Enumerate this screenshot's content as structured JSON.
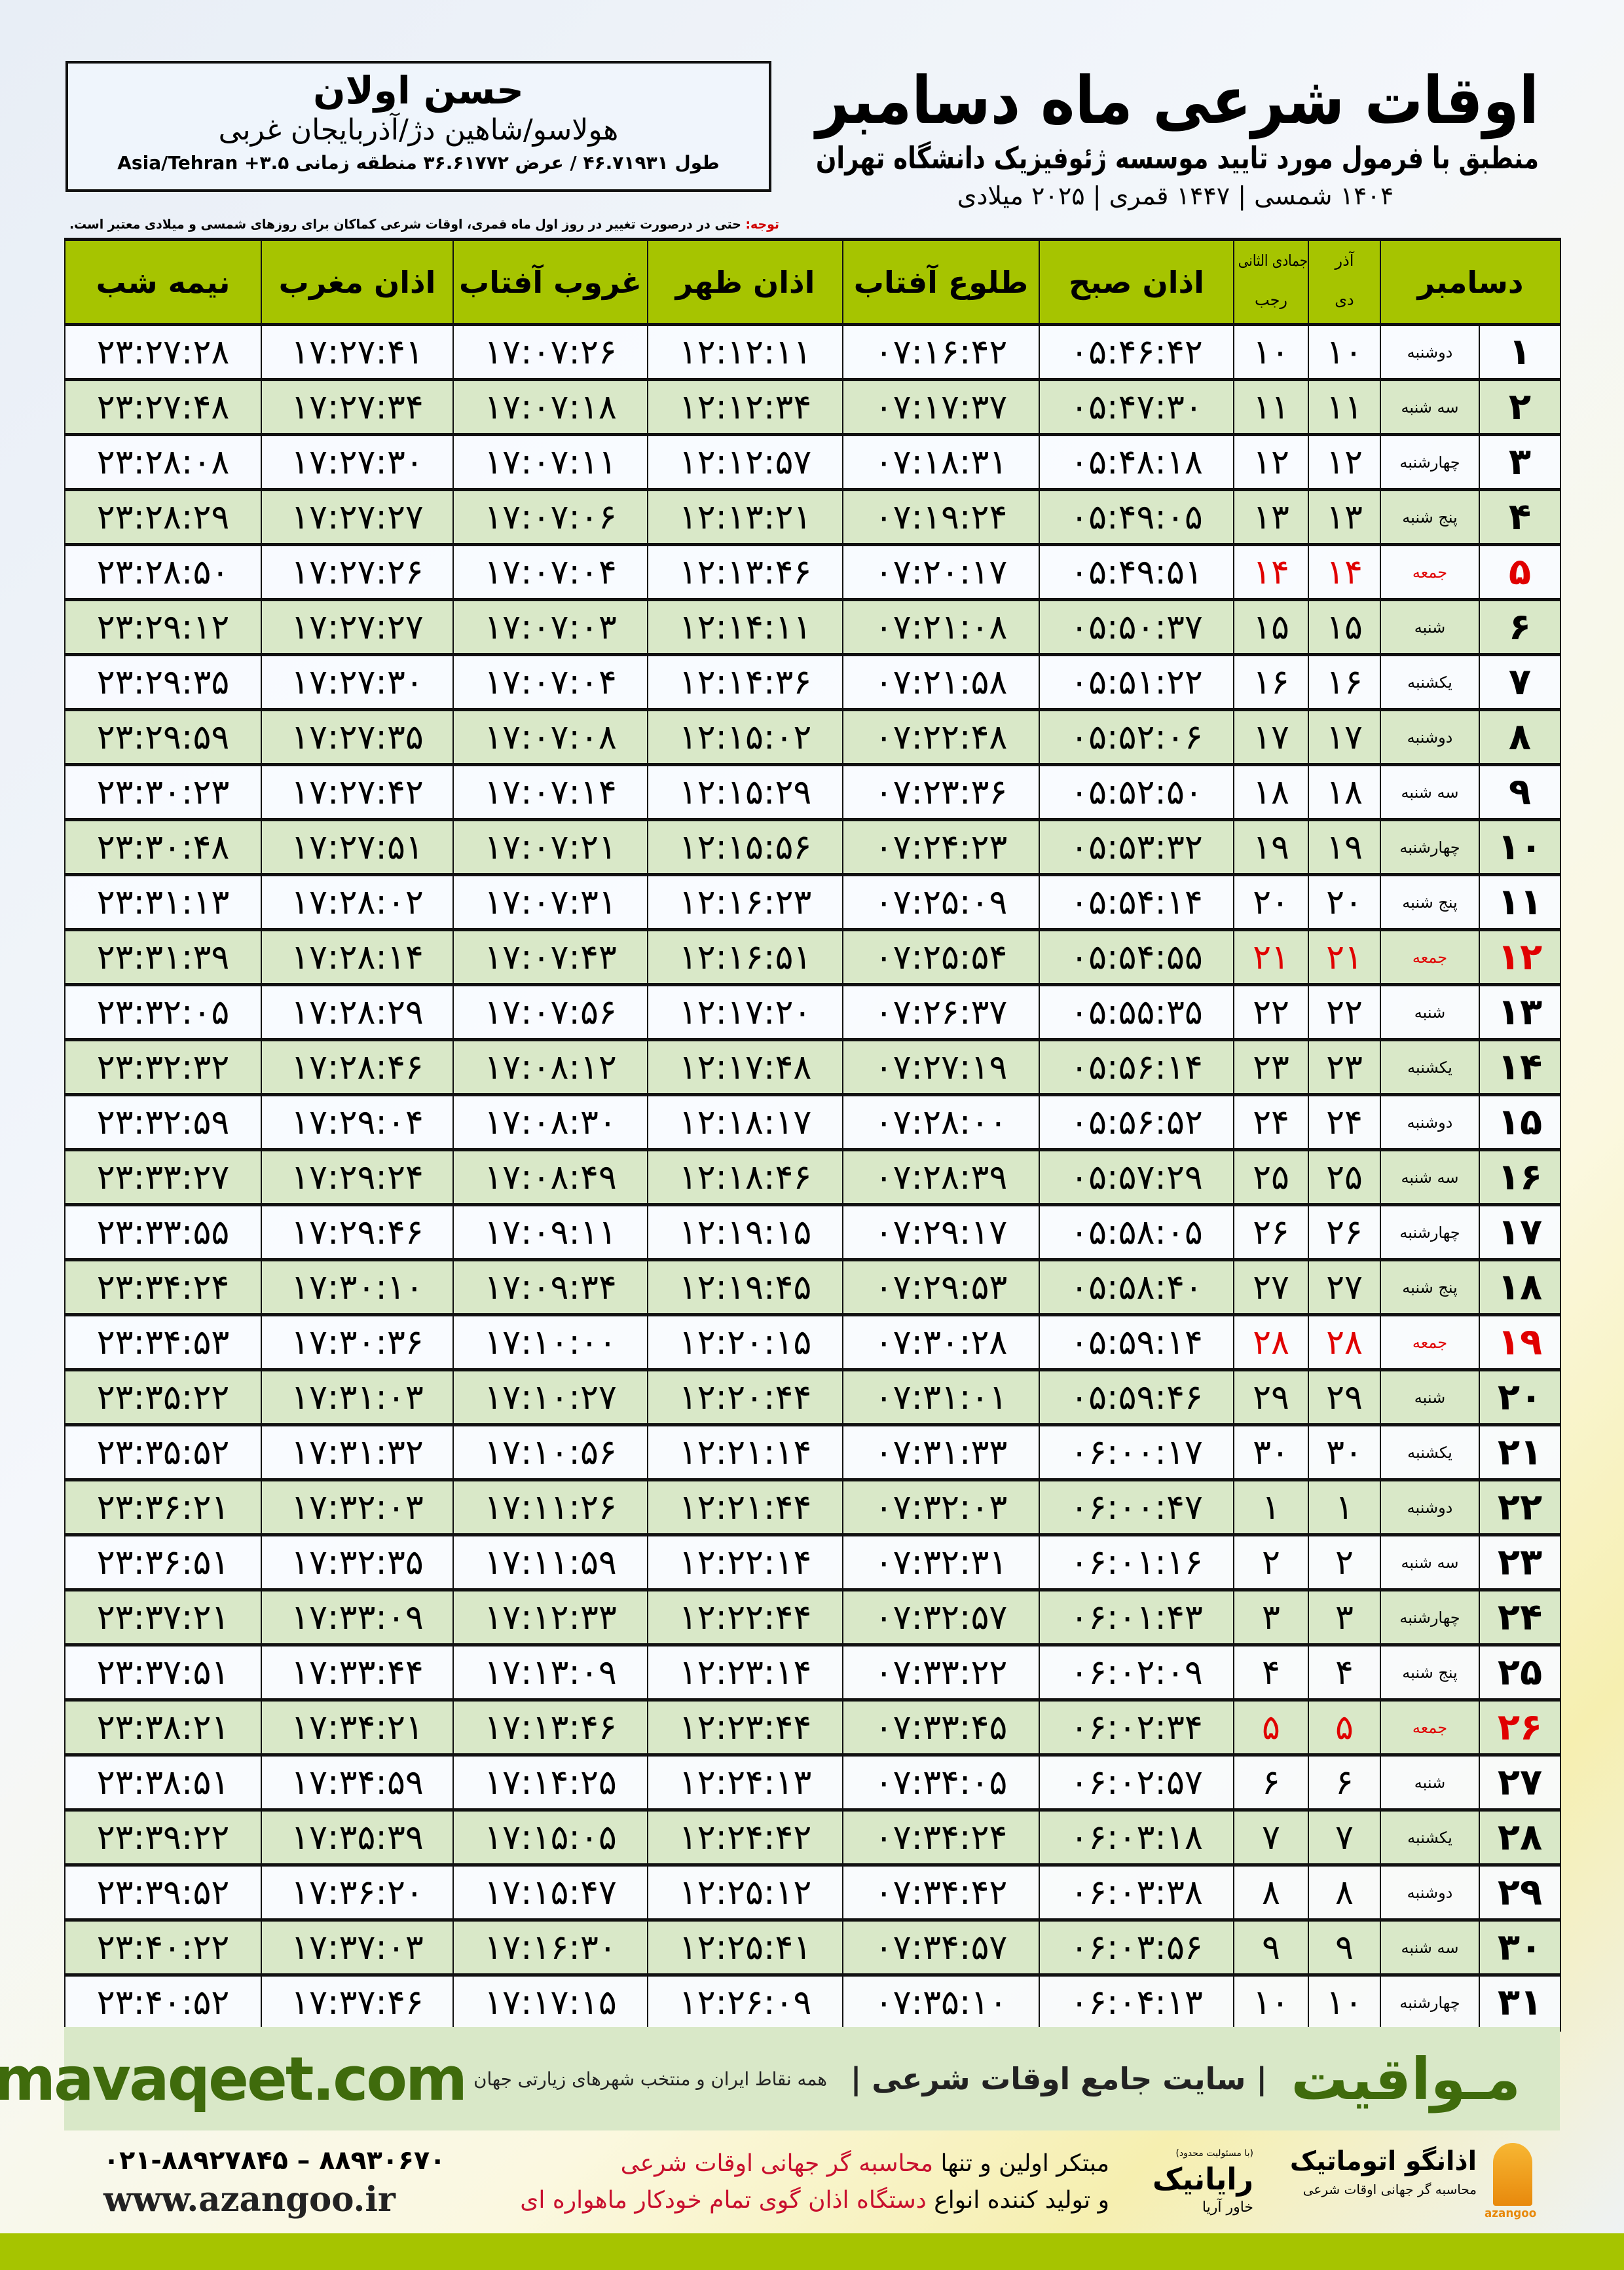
{
  "info": {
    "name": "حسن اولان",
    "region": "هولاسو/شاهین دژ/آذربایجان غربی",
    "coords": "طول ۴۶.۷۱۹۳۱ / عرض ۳۶.۶۱۷۷۲ منطقه زمانی Asia/Tehran +۳.۵"
  },
  "header": {
    "title": "اوقات شرعی ماه دسامبر",
    "subtitle": "منطبق با فرمول مورد تایید موسسه ژئوفیزیک دانشگاه تهران",
    "years": "۱۴۰۴ شمسی | ۱۴۴۷ قمری | ۲۰۲۵ میلادی"
  },
  "note": {
    "label": "توجه:",
    "text": " حتی در درصورت تغییر در روز اول ماه قمری، اوقات شرعی کماکان برای روزهای شمسی و میلادی معتبر است."
  },
  "colors": {
    "header_green": "#a6c400",
    "row_green": "#d9e8c8",
    "holiday_red": "#e00000",
    "brand_green": "#3f6b0c"
  },
  "table": {
    "columns": {
      "month": "دسامبر",
      "solar_top": "آذر",
      "solar_bottom": "دی",
      "lunar_top": "جمادی الثانی",
      "lunar_bottom": "رجب",
      "fajr": "اذان صبح",
      "sunrise": "طلوع آفتاب",
      "dhuhr": "اذان ظهر",
      "sunset": "غروب آفتاب",
      "maghrib": "اذان مغرب",
      "midnight": "نیمه شب"
    },
    "rows": [
      {
        "day": "۱",
        "weekday": "دوشنبه",
        "solar": "۱۰",
        "lunar": "۱۰",
        "times": [
          "۰۵:۴۶:۴۲",
          "۰۷:۱۶:۴۲",
          "۱۲:۱۲:۱۱",
          "۱۷:۰۷:۲۶",
          "۱۷:۲۷:۴۱",
          "۲۳:۲۷:۲۸"
        ]
      },
      {
        "day": "۲",
        "weekday": "سه شنبه",
        "solar": "۱۱",
        "lunar": "۱۱",
        "times": [
          "۰۵:۴۷:۳۰",
          "۰۷:۱۷:۳۷",
          "۱۲:۱۲:۳۴",
          "۱۷:۰۷:۱۸",
          "۱۷:۲۷:۳۴",
          "۲۳:۲۷:۴۸"
        ]
      },
      {
        "day": "۳",
        "weekday": "چهارشنبه",
        "solar": "۱۲",
        "lunar": "۱۲",
        "times": [
          "۰۵:۴۸:۱۸",
          "۰۷:۱۸:۳۱",
          "۱۲:۱۲:۵۷",
          "۱۷:۰۷:۱۱",
          "۱۷:۲۷:۳۰",
          "۲۳:۲۸:۰۸"
        ]
      },
      {
        "day": "۴",
        "weekday": "پنج شنبه",
        "solar": "۱۳",
        "lunar": "۱۳",
        "times": [
          "۰۵:۴۹:۰۵",
          "۰۷:۱۹:۲۴",
          "۱۲:۱۳:۲۱",
          "۱۷:۰۷:۰۶",
          "۱۷:۲۷:۲۷",
          "۲۳:۲۸:۲۹"
        ]
      },
      {
        "day": "۵",
        "weekday": "جمعه",
        "holiday": true,
        "solar": "۱۴",
        "lunar": "۱۴",
        "times": [
          "۰۵:۴۹:۵۱",
          "۰۷:۲۰:۱۷",
          "۱۲:۱۳:۴۶",
          "۱۷:۰۷:۰۴",
          "۱۷:۲۷:۲۶",
          "۲۳:۲۸:۵۰"
        ]
      },
      {
        "day": "۶",
        "weekday": "شنبه",
        "solar": "۱۵",
        "lunar": "۱۵",
        "times": [
          "۰۵:۵۰:۳۷",
          "۰۷:۲۱:۰۸",
          "۱۲:۱۴:۱۱",
          "۱۷:۰۷:۰۳",
          "۱۷:۲۷:۲۷",
          "۲۳:۲۹:۱۲"
        ]
      },
      {
        "day": "۷",
        "weekday": "یکشنبه",
        "solar": "۱۶",
        "lunar": "۱۶",
        "times": [
          "۰۵:۵۱:۲۲",
          "۰۷:۲۱:۵۸",
          "۱۲:۱۴:۳۶",
          "۱۷:۰۷:۰۴",
          "۱۷:۲۷:۳۰",
          "۲۳:۲۹:۳۵"
        ]
      },
      {
        "day": "۸",
        "weekday": "دوشنبه",
        "solar": "۱۷",
        "lunar": "۱۷",
        "times": [
          "۰۵:۵۲:۰۶",
          "۰۷:۲۲:۴۸",
          "۱۲:۱۵:۰۲",
          "۱۷:۰۷:۰۸",
          "۱۷:۲۷:۳۵",
          "۲۳:۲۹:۵۹"
        ]
      },
      {
        "day": "۹",
        "weekday": "سه شنبه",
        "solar": "۱۸",
        "lunar": "۱۸",
        "times": [
          "۰۵:۵۲:۵۰",
          "۰۷:۲۳:۳۶",
          "۱۲:۱۵:۲۹",
          "۱۷:۰۷:۱۴",
          "۱۷:۲۷:۴۲",
          "۲۳:۳۰:۲۳"
        ]
      },
      {
        "day": "۱۰",
        "weekday": "چهارشنبه",
        "solar": "۱۹",
        "lunar": "۱۹",
        "times": [
          "۰۵:۵۳:۳۲",
          "۰۷:۲۴:۲۳",
          "۱۲:۱۵:۵۶",
          "۱۷:۰۷:۲۱",
          "۱۷:۲۷:۵۱",
          "۲۳:۳۰:۴۸"
        ]
      },
      {
        "day": "۱۱",
        "weekday": "پنج شنبه",
        "solar": "۲۰",
        "lunar": "۲۰",
        "times": [
          "۰۵:۵۴:۱۴",
          "۰۷:۲۵:۰۹",
          "۱۲:۱۶:۲۳",
          "۱۷:۰۷:۳۱",
          "۱۷:۲۸:۰۲",
          "۲۳:۳۱:۱۳"
        ]
      },
      {
        "day": "۱۲",
        "weekday": "جمعه",
        "holiday": true,
        "solar": "۲۱",
        "lunar": "۲۱",
        "times": [
          "۰۵:۵۴:۵۵",
          "۰۷:۲۵:۵۴",
          "۱۲:۱۶:۵۱",
          "۱۷:۰۷:۴۳",
          "۱۷:۲۸:۱۴",
          "۲۳:۳۱:۳۹"
        ]
      },
      {
        "day": "۱۳",
        "weekday": "شنبه",
        "solar": "۲۲",
        "lunar": "۲۲",
        "times": [
          "۰۵:۵۵:۳۵",
          "۰۷:۲۶:۳۷",
          "۱۲:۱۷:۲۰",
          "۱۷:۰۷:۵۶",
          "۱۷:۲۸:۲۹",
          "۲۳:۳۲:۰۵"
        ]
      },
      {
        "day": "۱۴",
        "weekday": "یکشنبه",
        "solar": "۲۳",
        "lunar": "۲۳",
        "times": [
          "۰۵:۵۶:۱۴",
          "۰۷:۲۷:۱۹",
          "۱۲:۱۷:۴۸",
          "۱۷:۰۸:۱۲",
          "۱۷:۲۸:۴۶",
          "۲۳:۳۲:۳۲"
        ]
      },
      {
        "day": "۱۵",
        "weekday": "دوشنبه",
        "solar": "۲۴",
        "lunar": "۲۴",
        "times": [
          "۰۵:۵۶:۵۲",
          "۰۷:۲۸:۰۰",
          "۱۲:۱۸:۱۷",
          "۱۷:۰۸:۳۰",
          "۱۷:۲۹:۰۴",
          "۲۳:۳۲:۵۹"
        ]
      },
      {
        "day": "۱۶",
        "weekday": "سه شنبه",
        "solar": "۲۵",
        "lunar": "۲۵",
        "times": [
          "۰۵:۵۷:۲۹",
          "۰۷:۲۸:۳۹",
          "۱۲:۱۸:۴۶",
          "۱۷:۰۸:۴۹",
          "۱۷:۲۹:۲۴",
          "۲۳:۳۳:۲۷"
        ]
      },
      {
        "day": "۱۷",
        "weekday": "چهارشنبه",
        "solar": "۲۶",
        "lunar": "۲۶",
        "times": [
          "۰۵:۵۸:۰۵",
          "۰۷:۲۹:۱۷",
          "۱۲:۱۹:۱۵",
          "۱۷:۰۹:۱۱",
          "۱۷:۲۹:۴۶",
          "۲۳:۳۳:۵۵"
        ]
      },
      {
        "day": "۱۸",
        "weekday": "پنج شنبه",
        "solar": "۲۷",
        "lunar": "۲۷",
        "times": [
          "۰۵:۵۸:۴۰",
          "۰۷:۲۹:۵۳",
          "۱۲:۱۹:۴۵",
          "۱۷:۰۹:۳۴",
          "۱۷:۳۰:۱۰",
          "۲۳:۳۴:۲۴"
        ]
      },
      {
        "day": "۱۹",
        "weekday": "جمعه",
        "holiday": true,
        "solar": "۲۸",
        "lunar": "۲۸",
        "times": [
          "۰۵:۵۹:۱۴",
          "۰۷:۳۰:۲۸",
          "۱۲:۲۰:۱۵",
          "۱۷:۱۰:۰۰",
          "۱۷:۳۰:۳۶",
          "۲۳:۳۴:۵۳"
        ]
      },
      {
        "day": "۲۰",
        "weekday": "شنبه",
        "solar": "۲۹",
        "lunar": "۲۹",
        "times": [
          "۰۵:۵۹:۴۶",
          "۰۷:۳۱:۰۱",
          "۱۲:۲۰:۴۴",
          "۱۷:۱۰:۲۷",
          "۱۷:۳۱:۰۳",
          "۲۳:۳۵:۲۲"
        ]
      },
      {
        "day": "۲۱",
        "weekday": "یکشنبه",
        "solar": "۳۰",
        "lunar": "۳۰",
        "times": [
          "۰۶:۰۰:۱۷",
          "۰۷:۳۱:۳۳",
          "۱۲:۲۱:۱۴",
          "۱۷:۱۰:۵۶",
          "۱۷:۳۱:۳۲",
          "۲۳:۳۵:۵۲"
        ]
      },
      {
        "day": "۲۲",
        "weekday": "دوشنبه",
        "solar": "۱",
        "lunar": "۱",
        "times": [
          "۰۶:۰۰:۴۷",
          "۰۷:۳۲:۰۳",
          "۱۲:۲۱:۴۴",
          "۱۷:۱۱:۲۶",
          "۱۷:۳۲:۰۳",
          "۲۳:۳۶:۲۱"
        ]
      },
      {
        "day": "۲۳",
        "weekday": "سه شنبه",
        "solar": "۲",
        "lunar": "۲",
        "times": [
          "۰۶:۰۱:۱۶",
          "۰۷:۳۲:۳۱",
          "۱۲:۲۲:۱۴",
          "۱۷:۱۱:۵۹",
          "۱۷:۳۲:۳۵",
          "۲۳:۳۶:۵۱"
        ]
      },
      {
        "day": "۲۴",
        "weekday": "چهارشنبه",
        "solar": "۳",
        "lunar": "۳",
        "times": [
          "۰۶:۰۱:۴۳",
          "۰۷:۳۲:۵۷",
          "۱۲:۲۲:۴۴",
          "۱۷:۱۲:۳۳",
          "۱۷:۳۳:۰۹",
          "۲۳:۳۷:۲۱"
        ]
      },
      {
        "day": "۲۵",
        "weekday": "پنج شنبه",
        "solar": "۴",
        "lunar": "۴",
        "times": [
          "۰۶:۰۲:۰۹",
          "۰۷:۳۳:۲۲",
          "۱۲:۲۳:۱۴",
          "۱۷:۱۳:۰۹",
          "۱۷:۳۳:۴۴",
          "۲۳:۳۷:۵۱"
        ]
      },
      {
        "day": "۲۶",
        "weekday": "جمعه",
        "holiday": true,
        "solar": "۵",
        "lunar": "۵",
        "times": [
          "۰۶:۰۲:۳۴",
          "۰۷:۳۳:۴۵",
          "۱۲:۲۳:۴۴",
          "۱۷:۱۳:۴۶",
          "۱۷:۳۴:۲۱",
          "۲۳:۳۸:۲۱"
        ]
      },
      {
        "day": "۲۷",
        "weekday": "شنبه",
        "solar": "۶",
        "lunar": "۶",
        "times": [
          "۰۶:۰۲:۵۷",
          "۰۷:۳۴:۰۵",
          "۱۲:۲۴:۱۳",
          "۱۷:۱۴:۲۵",
          "۱۷:۳۴:۵۹",
          "۲۳:۳۸:۵۱"
        ]
      },
      {
        "day": "۲۸",
        "weekday": "یکشنبه",
        "solar": "۷",
        "lunar": "۷",
        "times": [
          "۰۶:۰۳:۱۸",
          "۰۷:۳۴:۲۴",
          "۱۲:۲۴:۴۲",
          "۱۷:۱۵:۰۵",
          "۱۷:۳۵:۳۹",
          "۲۳:۳۹:۲۲"
        ]
      },
      {
        "day": "۲۹",
        "weekday": "دوشنبه",
        "solar": "۸",
        "lunar": "۸",
        "times": [
          "۰۶:۰۳:۳۸",
          "۰۷:۳۴:۴۲",
          "۱۲:۲۵:۱۲",
          "۱۷:۱۵:۴۷",
          "۱۷:۳۶:۲۰",
          "۲۳:۳۹:۵۲"
        ]
      },
      {
        "day": "۳۰",
        "weekday": "سه شنبه",
        "solar": "۹",
        "lunar": "۹",
        "times": [
          "۰۶:۰۳:۵۶",
          "۰۷:۳۴:۵۷",
          "۱۲:۲۵:۴۱",
          "۱۷:۱۶:۳۰",
          "۱۷:۳۷:۰۳",
          "۲۳:۴۰:۲۲"
        ]
      },
      {
        "day": "۳۱",
        "weekday": "چهارشنبه",
        "solar": "۱۰",
        "lunar": "۱۰",
        "times": [
          "۰۶:۰۴:۱۳",
          "۰۷:۳۵:۱۰",
          "۱۲:۲۶:۰۹",
          "۱۷:۱۷:۱۵",
          "۱۷:۳۷:۴۶",
          "۲۳:۴۰:۵۲"
        ]
      }
    ]
  },
  "footer": {
    "brand": "مـواقیت",
    "tagline": "| سایت جامع اوقات شرعی |",
    "sub": "همه نقاط ایران و منتخب شهرهای زیارتی جهان",
    "url": "mavaqeet.com",
    "azangoo_name": "اذانگو اتوماتیک",
    "azangoo_sub": "محاسبه گر جهانی اوقات شرعی",
    "azangoo_latin": "azangoo",
    "rayanik_small": "(با مسئولیت محدود)",
    "rayanik_name": "رایانیک",
    "rayanik_sub": "خاور آریا",
    "pitch_line1_a": "مبتکر اولین و تنها ",
    "pitch_line1_b": "محاسبه گر جهانی اوقات شرعی",
    "pitch_line2_a": "و تولید کننده انواع ",
    "pitch_line2_b": "دستگاه اذان گوی تمام خودکار ماهواره ای",
    "phones": "۰۲۱-۸۸۹۲۷۸۴۵ – ۸۸۹۳۰۶۷۰",
    "site": "www.azangoo.ir"
  }
}
